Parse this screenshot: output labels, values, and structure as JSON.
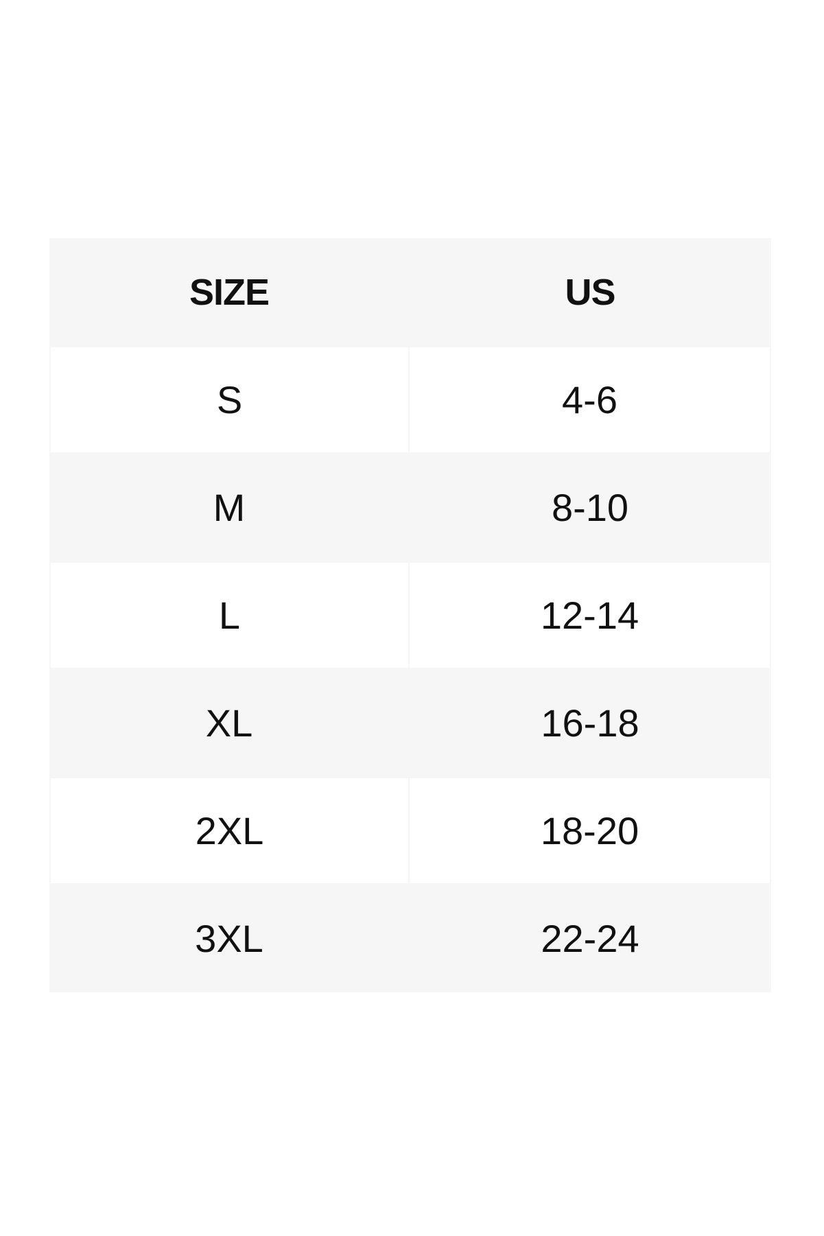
{
  "table": {
    "headers": [
      "SIZE",
      "US"
    ],
    "rows": [
      [
        "S",
        "4-6"
      ],
      [
        "M",
        "8-10"
      ],
      [
        "L",
        "12-14"
      ],
      [
        "XL",
        "16-18"
      ],
      [
        "2XL",
        "18-20"
      ],
      [
        "3XL",
        "22-24"
      ]
    ]
  },
  "colors": {
    "stripe": "#f6f6f6",
    "white": "#ffffff",
    "text": "#111111"
  }
}
